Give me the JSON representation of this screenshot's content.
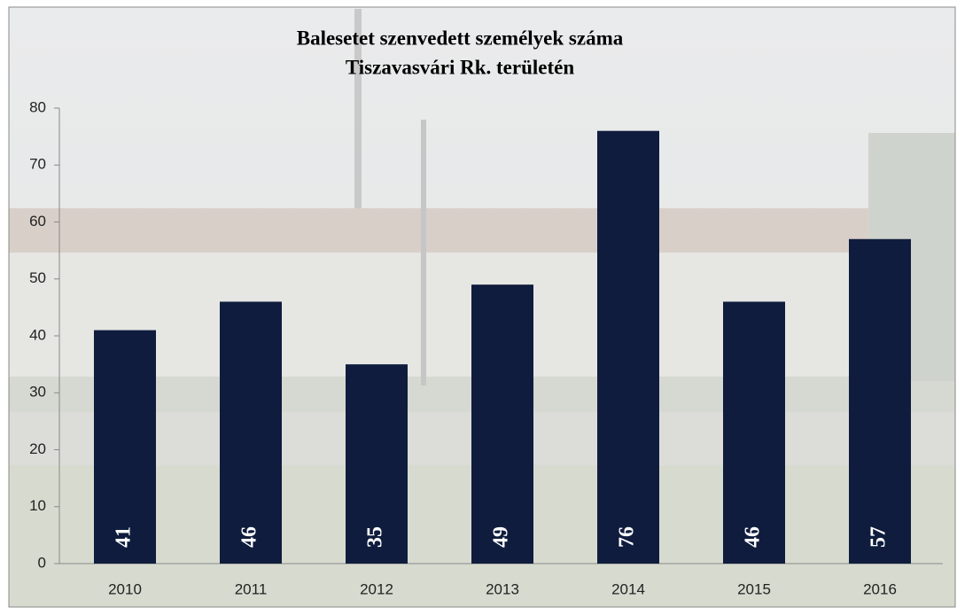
{
  "chart_data": {
    "type": "bar",
    "title": "Balesetet szenvedett személyek száma",
    "subtitle": "Tiszavasvári Rk. területén",
    "categories": [
      "2010",
      "2011",
      "2012",
      "2013",
      "2014",
      "2015",
      "2016"
    ],
    "values": [
      41,
      46,
      35,
      49,
      76,
      46,
      57
    ],
    "color": "#0f1c3d",
    "ylim": [
      0,
      80
    ],
    "yticks": [
      0,
      10,
      20,
      30,
      40,
      50,
      60,
      70,
      80
    ],
    "grid": false,
    "data_labels": true
  }
}
